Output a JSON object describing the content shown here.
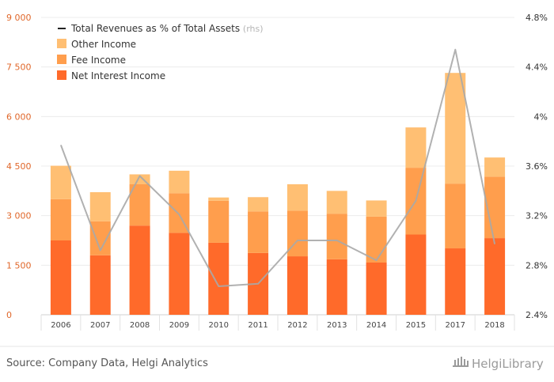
{
  "chart_data": {
    "type": "bar",
    "stacked": true,
    "categories": [
      "2006",
      "2007",
      "2008",
      "2009",
      "2010",
      "2011",
      "2012",
      "2013",
      "2014",
      "2015",
      "2017",
      "2018"
    ],
    "series": [
      {
        "name": "Net Interest Income",
        "color": "#ff6a2a",
        "values": [
          2250,
          1800,
          2700,
          2480,
          2180,
          1870,
          1770,
          1680,
          1580,
          2430,
          2010,
          2320
        ]
      },
      {
        "name": "Fee Income",
        "color": "#ff9e4d",
        "values": [
          1250,
          1030,
          1250,
          1200,
          1270,
          1260,
          1380,
          1380,
          1390,
          2020,
          1960,
          1860
        ]
      },
      {
        "name": "Other Income",
        "color": "#ffbf73",
        "values": [
          1010,
          880,
          300,
          680,
          100,
          430,
          800,
          690,
          490,
          1220,
          3350,
          580
        ]
      }
    ],
    "line_series": {
      "name": "Total Revenues as % of Total Assets",
      "axis_note": "(rhs)",
      "color": "#a8a8a8",
      "values": [
        3.77,
        2.92,
        3.52,
        3.21,
        2.63,
        2.65,
        3.0,
        3.0,
        2.84,
        3.32,
        4.54,
        2.97
      ]
    },
    "y_left": {
      "ticks": [
        "0",
        "1 500",
        "3 000",
        "4 500",
        "6 000",
        "7 500",
        "9 000"
      ],
      "ylim": [
        0,
        9000
      ]
    },
    "y_right": {
      "ticks": [
        "2.4%",
        "2.8%",
        "3.2%",
        "3.6%",
        "4%",
        "4.4%",
        "4.8%"
      ],
      "ylim": [
        2.4,
        4.8
      ]
    },
    "legend": {
      "placement": "top-left"
    },
    "grid": true
  },
  "footer": {
    "source": "Source: Company Data, Helgi Analytics",
    "brand": "HelgiLibrary"
  }
}
